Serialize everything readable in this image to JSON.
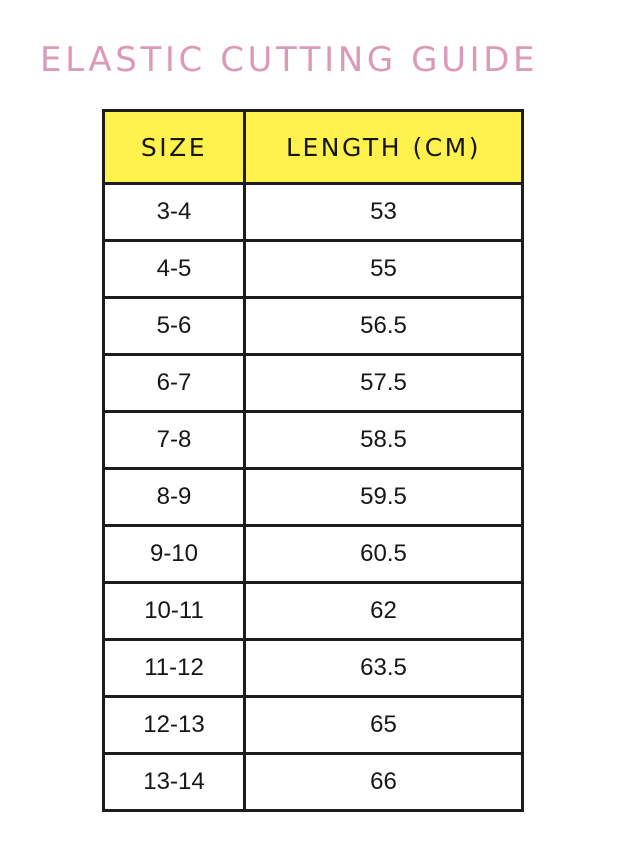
{
  "title": "ELASTIC CUTTING GUIDE",
  "colors": {
    "title": "#dc9ab9",
    "header_bg": "#fff24c",
    "border": "#1c1c1c"
  },
  "table": {
    "headers": [
      "SIZE",
      "LENGTH (CM)"
    ],
    "rows": [
      [
        "3-4",
        "53"
      ],
      [
        "4-5",
        "55"
      ],
      [
        "5-6",
        "56.5"
      ],
      [
        "6-7",
        "57.5"
      ],
      [
        "7-8",
        "58.5"
      ],
      [
        "8-9",
        "59.5"
      ],
      [
        "9-10",
        "60.5"
      ],
      [
        "10-11",
        "62"
      ],
      [
        "11-12",
        "63.5"
      ],
      [
        "12-13",
        "65"
      ],
      [
        "13-14",
        "66"
      ]
    ]
  }
}
